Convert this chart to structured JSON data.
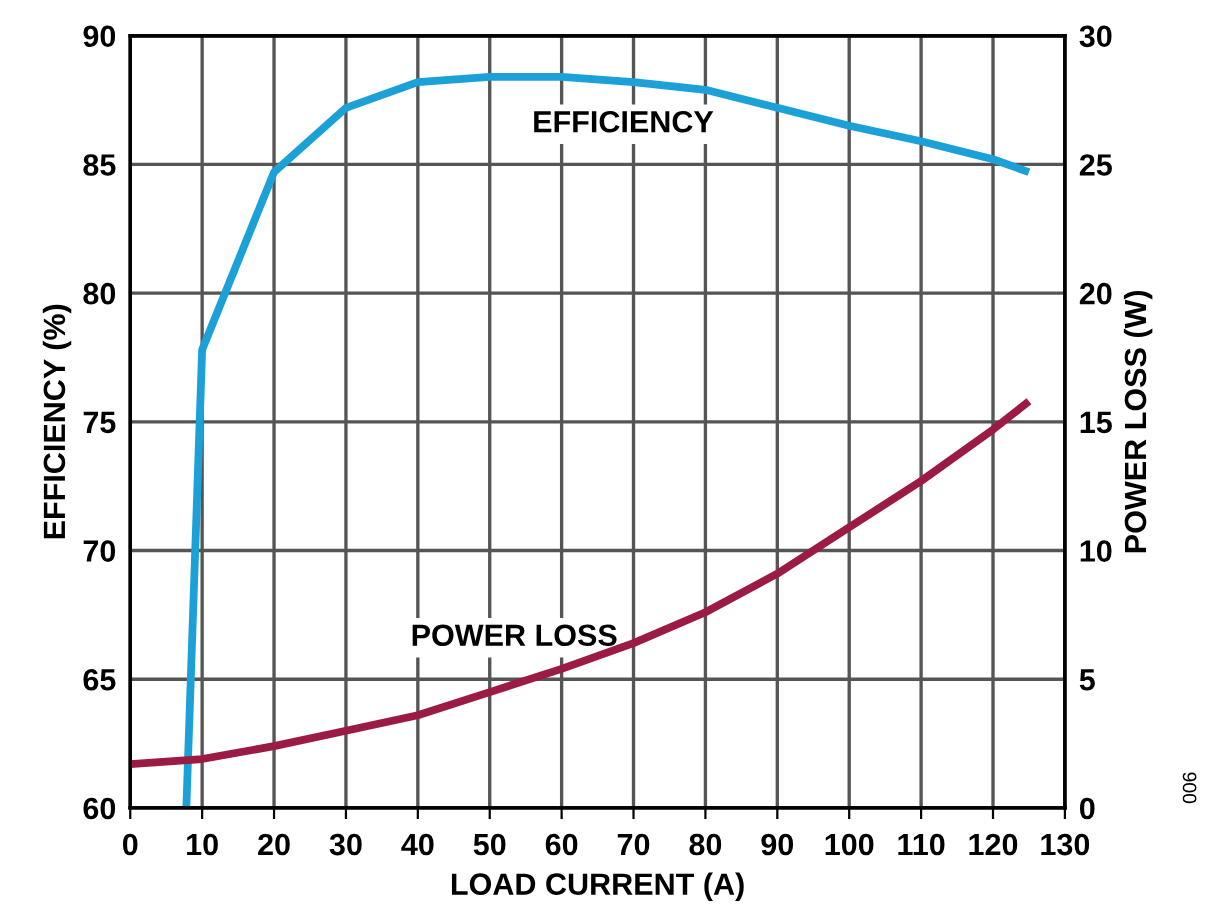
{
  "chart_data": {
    "type": "line",
    "xlabel": "LOAD CURRENT (A)",
    "ylabel": "EFFICIENCY (%)",
    "y2label": "POWER LOSS (W)",
    "xlim": [
      0,
      130
    ],
    "xticks": [
      0,
      10,
      20,
      30,
      40,
      50,
      60,
      70,
      80,
      90,
      100,
      110,
      120,
      130
    ],
    "ylim": [
      60,
      90
    ],
    "yticks": [
      60,
      65,
      70,
      75,
      80,
      85,
      90
    ],
    "y2lim": [
      0,
      30
    ],
    "y2ticks": [
      0,
      5,
      10,
      15,
      20,
      25,
      30
    ],
    "grid": true,
    "legend": false,
    "marker": "none",
    "line_style": "solid",
    "series": [
      {
        "name": "EFFICIENCY",
        "color": "#1ba1d8",
        "x": [
          7.8,
          10,
          20,
          30,
          40,
          50,
          60,
          70,
          80,
          90,
          100,
          110,
          120,
          125
        ],
        "values": [
          60,
          77.8,
          84.7,
          87.2,
          88.2,
          88.4,
          88.4,
          88.2,
          87.9,
          87.2,
          86.5,
          85.9,
          85.2,
          84.7
        ]
      },
      {
        "name": "POWER LOSS",
        "color": "#9b1b45",
        "axis": "y2",
        "x": [
          0,
          10,
          20,
          30,
          40,
          50,
          60,
          70,
          80,
          90,
          100,
          110,
          120,
          125
        ],
        "values": [
          1.7,
          1.9,
          2.4,
          3.0,
          3.6,
          4.5,
          5.4,
          6.4,
          7.6,
          9.1,
          10.9,
          12.7,
          14.7,
          15.8
        ]
      }
    ],
    "annotations": [
      "900"
    ]
  }
}
